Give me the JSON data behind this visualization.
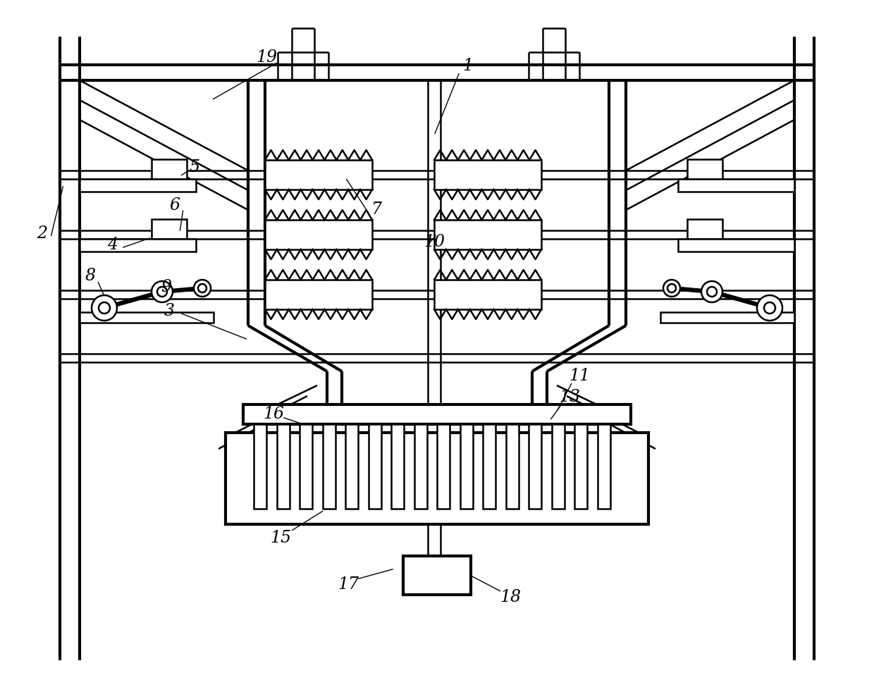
{
  "bg": "#ffffff",
  "lc": "#000000",
  "lw": 1.8,
  "tlw": 3.0,
  "fig_w": 12.4,
  "fig_h": 9.92,
  "dpi": 100,
  "xlim": [
    0,
    1240
  ],
  "ylim": [
    0,
    992
  ]
}
